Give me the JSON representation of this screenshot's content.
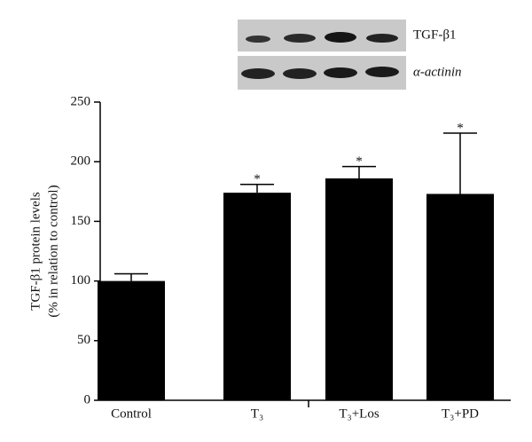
{
  "chart_data": {
    "type": "bar",
    "y_label": [
      "TGF-β1 protein levels",
      "(% in relation to control)"
    ],
    "categories": [
      "Control",
      "T₃",
      "T₃+Los",
      "T₃+PD"
    ],
    "values": [
      100,
      174,
      186,
      173
    ],
    "errors": [
      6,
      7,
      10,
      51
    ],
    "annotations": [
      null,
      "*",
      "*",
      "*"
    ],
    "color": "#000000",
    "ylim": [
      0,
      250
    ],
    "yticks": [
      0,
      50,
      100,
      150,
      200,
      250
    ],
    "blot_labels": [
      "TGF-β1",
      "α-actinin"
    ]
  }
}
